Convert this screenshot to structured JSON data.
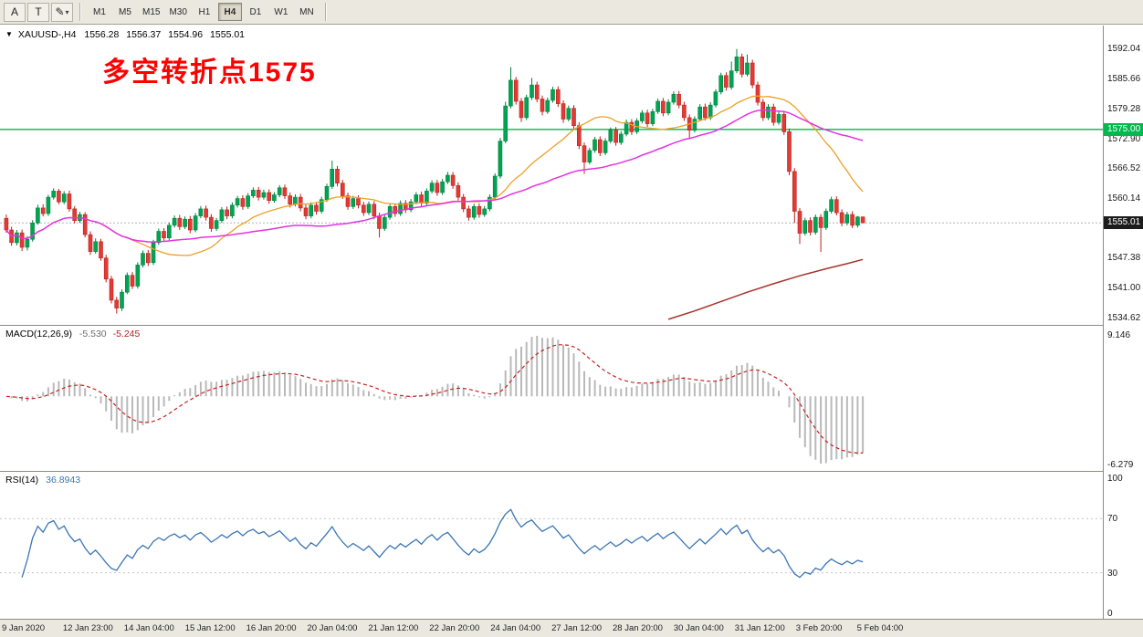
{
  "toolbar": {
    "tools": [
      {
        "label": "A"
      },
      {
        "label": "T"
      },
      {
        "label": "✎",
        "caret": "▾"
      }
    ],
    "timeframes": [
      {
        "label": "M1"
      },
      {
        "label": "M5"
      },
      {
        "label": "M15"
      },
      {
        "label": "M30"
      },
      {
        "label": "H1"
      },
      {
        "label": "H4"
      },
      {
        "label": "D1"
      },
      {
        "label": "W1"
      },
      {
        "label": "MN"
      }
    ],
    "active_timeframe": "H4"
  },
  "chart": {
    "symbol_line": {
      "icon": "▼",
      "symbol": "XAUUSD-,H4",
      "open": "1556.28",
      "high": "1556.37",
      "low": "1554.96",
      "close": "1555.01"
    },
    "annotation": {
      "text": "多空转折点1575",
      "color": "#ff0000"
    },
    "hline": {
      "price": 1575.0,
      "label": "1575.00"
    },
    "current_price": {
      "value": 1555.01,
      "label": "1555.01"
    },
    "axis_labels": [
      1592.04,
      1585.66,
      1579.28,
      1572.9,
      1566.52,
      1560.14,
      1547.38,
      1541.0,
      1534.62
    ]
  },
  "macd_panel": {
    "title": "MACD(12,26,9)",
    "value_main": "-5.530",
    "value_signal": "-5.245",
    "axis_top": "9.146",
    "axis_bottom": "-6.279"
  },
  "rsi_panel": {
    "title": "RSI(14)",
    "value": "36.8943",
    "axis": [
      100,
      70,
      30,
      0
    ],
    "levels": [
      70,
      30
    ]
  },
  "time_axis": {
    "labels": [
      "9 Jan 2020",
      "12 Jan 23:00",
      "14 Jan 04:00",
      "15 Jan 12:00",
      "16 Jan 20:00",
      "20 Jan 04:00",
      "21 Jan 12:00",
      "22 Jan 20:00",
      "24 Jan 04:00",
      "27 Jan 12:00",
      "28 Jan 20:00",
      "30 Jan 04:00",
      "31 Jan 12:00",
      "3 Feb 20:00",
      "5 Feb 04:00"
    ]
  },
  "colors": {
    "bull": "#00a553",
    "bull_stroke": "#00813e",
    "bear": "#e23b35",
    "bear_stroke": "#bc211c",
    "ma_fast": "#eda128",
    "ma_slow": "#e233e2",
    "ma_long": "#a8322c",
    "hline": "#00b94e",
    "price_line": "#b4b4b4",
    "price_tag_bg": "#1c1c1c",
    "macd_hist": "#b9b9b9",
    "macd_signal": "#c62222",
    "rsi": "#3b76b3",
    "rsi_level": "#c6c6c6"
  },
  "chart_data": {
    "type": "candlestick",
    "title": "XAUUSD- H4",
    "ylim": [
      1533.6,
      1596.8
    ],
    "macd_params": [
      12,
      26,
      9
    ],
    "rsi_period": 14,
    "ohlc": [
      [
        1556.0,
        1556.8,
        1552.9,
        1553.5
      ],
      [
        1553.5,
        1554.2,
        1550.1,
        1550.8
      ],
      [
        1550.8,
        1553.5,
        1550.2,
        1552.9
      ],
      [
        1552.9,
        1553.6,
        1549.0,
        1549.8
      ],
      [
        1549.8,
        1552.2,
        1549.1,
        1551.5
      ],
      [
        1551.5,
        1555.6,
        1551.0,
        1555.0
      ],
      [
        1555.0,
        1558.9,
        1554.6,
        1558.2
      ],
      [
        1558.2,
        1559.0,
        1556.4,
        1557.0
      ],
      [
        1557.0,
        1561.0,
        1556.5,
        1560.5
      ],
      [
        1560.5,
        1562.4,
        1560.0,
        1561.8
      ],
      [
        1561.8,
        1562.3,
        1559.0,
        1559.5
      ],
      [
        1559.5,
        1561.8,
        1559.0,
        1561.2
      ],
      [
        1561.2,
        1561.9,
        1557.4,
        1558.0
      ],
      [
        1558.0,
        1558.6,
        1554.9,
        1555.5
      ],
      [
        1555.5,
        1557.4,
        1555.0,
        1556.8
      ],
      [
        1556.8,
        1557.3,
        1551.9,
        1552.5
      ],
      [
        1552.5,
        1553.2,
        1548.2,
        1548.9
      ],
      [
        1548.9,
        1551.7,
        1548.4,
        1551.0
      ],
      [
        1551.0,
        1551.6,
        1546.9,
        1547.5
      ],
      [
        1547.5,
        1548.2,
        1542.3,
        1543.0
      ],
      [
        1543.0,
        1543.7,
        1537.8,
        1538.5
      ],
      [
        1538.5,
        1539.2,
        1535.6,
        1536.8
      ],
      [
        1536.8,
        1540.8,
        1536.2,
        1540.2
      ],
      [
        1540.2,
        1544.4,
        1539.8,
        1543.8
      ],
      [
        1543.8,
        1544.5,
        1540.9,
        1541.5
      ],
      [
        1541.5,
        1546.6,
        1541.0,
        1546.0
      ],
      [
        1546.0,
        1549.1,
        1545.5,
        1548.5
      ],
      [
        1548.5,
        1549.2,
        1545.8,
        1546.5
      ],
      [
        1546.5,
        1551.4,
        1546.0,
        1550.8
      ],
      [
        1550.8,
        1553.8,
        1550.3,
        1553.2
      ],
      [
        1553.2,
        1553.9,
        1551.1,
        1551.8
      ],
      [
        1551.8,
        1555.1,
        1551.3,
        1554.5
      ],
      [
        1554.5,
        1556.6,
        1554.0,
        1556.0
      ],
      [
        1556.0,
        1556.7,
        1553.5,
        1554.2
      ],
      [
        1554.2,
        1556.4,
        1553.7,
        1555.8
      ],
      [
        1555.8,
        1556.5,
        1552.8,
        1553.5
      ],
      [
        1553.5,
        1557.1,
        1553.0,
        1556.5
      ],
      [
        1556.5,
        1558.6,
        1556.0,
        1558.0
      ],
      [
        1558.0,
        1558.7,
        1555.5,
        1556.2
      ],
      [
        1556.2,
        1556.9,
        1553.1,
        1553.8
      ],
      [
        1553.8,
        1556.1,
        1553.3,
        1555.5
      ],
      [
        1555.5,
        1558.4,
        1555.0,
        1557.8
      ],
      [
        1557.8,
        1558.5,
        1555.8,
        1556.5
      ],
      [
        1556.5,
        1559.4,
        1556.0,
        1558.8
      ],
      [
        1558.8,
        1560.8,
        1558.3,
        1560.2
      ],
      [
        1560.2,
        1560.9,
        1557.8,
        1558.5
      ],
      [
        1558.5,
        1561.4,
        1558.0,
        1560.8
      ],
      [
        1560.8,
        1562.6,
        1560.3,
        1562.0
      ],
      [
        1562.0,
        1562.7,
        1559.8,
        1560.5
      ],
      [
        1560.5,
        1562.1,
        1560.0,
        1561.5
      ],
      [
        1561.5,
        1562.2,
        1559.1,
        1559.8
      ],
      [
        1559.8,
        1561.6,
        1559.3,
        1561.0
      ],
      [
        1561.0,
        1563.1,
        1560.5,
        1562.5
      ],
      [
        1562.5,
        1563.2,
        1560.1,
        1560.8
      ],
      [
        1560.8,
        1561.5,
        1558.3,
        1559.0
      ],
      [
        1559.0,
        1561.1,
        1558.5,
        1560.5
      ],
      [
        1560.5,
        1561.2,
        1557.5,
        1558.2
      ],
      [
        1558.2,
        1558.9,
        1555.8,
        1556.5
      ],
      [
        1556.5,
        1559.4,
        1556.0,
        1558.8
      ],
      [
        1558.8,
        1559.5,
        1556.8,
        1557.5
      ],
      [
        1557.5,
        1560.6,
        1557.0,
        1560.0
      ],
      [
        1560.0,
        1563.4,
        1559.5,
        1562.8
      ],
      [
        1562.8,
        1568.3,
        1562.3,
        1566.5
      ],
      [
        1566.5,
        1567.2,
        1562.8,
        1563.5
      ],
      [
        1563.5,
        1564.2,
        1560.1,
        1560.8
      ],
      [
        1560.8,
        1561.5,
        1557.8,
        1558.5
      ],
      [
        1558.5,
        1560.8,
        1558.0,
        1560.2
      ],
      [
        1560.2,
        1560.9,
        1558.1,
        1558.8
      ],
      [
        1558.8,
        1559.5,
        1556.5,
        1557.2
      ],
      [
        1557.2,
        1559.6,
        1556.7,
        1559.0
      ],
      [
        1559.0,
        1559.7,
        1555.8,
        1556.5
      ],
      [
        1556.5,
        1557.2,
        1551.9,
        1553.8
      ],
      [
        1553.8,
        1556.8,
        1553.3,
        1556.2
      ],
      [
        1556.2,
        1559.1,
        1555.7,
        1558.5
      ],
      [
        1558.5,
        1559.2,
        1556.3,
        1557.0
      ],
      [
        1557.0,
        1559.8,
        1556.5,
        1559.2
      ],
      [
        1559.2,
        1559.9,
        1557.1,
        1557.8
      ],
      [
        1557.8,
        1560.1,
        1557.3,
        1559.5
      ],
      [
        1559.5,
        1561.6,
        1559.0,
        1561.0
      ],
      [
        1561.0,
        1561.7,
        1558.5,
        1559.2
      ],
      [
        1559.2,
        1562.4,
        1558.7,
        1561.8
      ],
      [
        1561.8,
        1564.1,
        1561.3,
        1563.5
      ],
      [
        1563.5,
        1564.2,
        1560.8,
        1561.5
      ],
      [
        1561.5,
        1564.4,
        1561.0,
        1563.8
      ],
      [
        1563.8,
        1565.9,
        1563.3,
        1565.2
      ],
      [
        1565.2,
        1565.9,
        1562.3,
        1563.0
      ],
      [
        1563.0,
        1563.7,
        1559.8,
        1560.5
      ],
      [
        1560.5,
        1561.2,
        1557.3,
        1558.0
      ],
      [
        1558.0,
        1558.7,
        1555.5,
        1556.2
      ],
      [
        1556.2,
        1559.1,
        1555.7,
        1558.5
      ],
      [
        1558.5,
        1559.2,
        1556.1,
        1556.8
      ],
      [
        1556.8,
        1558.6,
        1556.3,
        1558.0
      ],
      [
        1558.0,
        1561.1,
        1557.5,
        1560.5
      ],
      [
        1560.5,
        1565.6,
        1560.0,
        1565.0
      ],
      [
        1565.0,
        1573.2,
        1564.5,
        1572.5
      ],
      [
        1572.5,
        1580.9,
        1572.0,
        1580.0
      ],
      [
        1580.0,
        1588.3,
        1579.5,
        1585.5
      ],
      [
        1585.5,
        1586.2,
        1580.3,
        1581.0
      ],
      [
        1581.0,
        1581.7,
        1576.6,
        1577.5
      ],
      [
        1577.5,
        1582.4,
        1577.0,
        1581.8
      ],
      [
        1581.8,
        1586.0,
        1581.3,
        1584.5
      ],
      [
        1584.5,
        1585.2,
        1580.8,
        1581.5
      ],
      [
        1581.5,
        1582.2,
        1578.0,
        1578.8
      ],
      [
        1578.8,
        1581.8,
        1578.3,
        1581.2
      ],
      [
        1581.2,
        1584.1,
        1580.7,
        1583.5
      ],
      [
        1583.5,
        1584.2,
        1579.8,
        1580.5
      ],
      [
        1580.5,
        1581.2,
        1576.4,
        1577.2
      ],
      [
        1577.2,
        1580.1,
        1576.7,
        1579.5
      ],
      [
        1579.5,
        1580.2,
        1575.1,
        1575.8
      ],
      [
        1575.8,
        1576.5,
        1570.8,
        1571.5
      ],
      [
        1571.5,
        1572.2,
        1565.5,
        1568.0
      ],
      [
        1568.0,
        1571.1,
        1567.5,
        1570.5
      ],
      [
        1570.5,
        1573.4,
        1570.0,
        1572.8
      ],
      [
        1572.8,
        1573.5,
        1569.3,
        1570.0
      ],
      [
        1570.0,
        1573.1,
        1569.5,
        1572.5
      ],
      [
        1572.5,
        1575.4,
        1572.0,
        1574.8
      ],
      [
        1574.8,
        1575.5,
        1571.5,
        1572.2
      ],
      [
        1572.2,
        1574.6,
        1571.7,
        1574.0
      ],
      [
        1574.0,
        1577.1,
        1573.5,
        1576.5
      ],
      [
        1576.5,
        1577.2,
        1573.8,
        1574.5
      ],
      [
        1574.5,
        1577.4,
        1574.0,
        1576.8
      ],
      [
        1576.8,
        1579.1,
        1576.3,
        1578.5
      ],
      [
        1578.5,
        1579.2,
        1575.5,
        1576.2
      ],
      [
        1576.2,
        1579.4,
        1575.7,
        1578.8
      ],
      [
        1578.8,
        1581.6,
        1578.3,
        1581.0
      ],
      [
        1581.0,
        1581.7,
        1577.8,
        1578.5
      ],
      [
        1578.5,
        1581.4,
        1578.0,
        1580.8
      ],
      [
        1580.8,
        1583.1,
        1580.3,
        1582.5
      ],
      [
        1582.5,
        1583.2,
        1579.5,
        1580.2
      ],
      [
        1580.2,
        1580.9,
        1576.8,
        1577.5
      ],
      [
        1577.5,
        1578.2,
        1572.9,
        1574.8
      ],
      [
        1574.8,
        1577.8,
        1574.3,
        1577.2
      ],
      [
        1577.2,
        1580.4,
        1576.7,
        1579.8
      ],
      [
        1579.8,
        1580.5,
        1576.9,
        1577.5
      ],
      [
        1577.5,
        1580.8,
        1577.0,
        1580.2
      ],
      [
        1580.2,
        1583.6,
        1579.7,
        1583.0
      ],
      [
        1583.0,
        1587.1,
        1582.5,
        1586.5
      ],
      [
        1586.5,
        1587.2,
        1583.3,
        1584.0
      ],
      [
        1584.0,
        1589.5,
        1583.5,
        1587.5
      ],
      [
        1587.5,
        1592.2,
        1587.0,
        1590.5
      ],
      [
        1590.5,
        1591.2,
        1586.1,
        1586.8
      ],
      [
        1586.8,
        1591.0,
        1586.3,
        1589.2
      ],
      [
        1589.2,
        1589.9,
        1583.8,
        1584.5
      ],
      [
        1584.5,
        1585.2,
        1580.1,
        1580.8
      ],
      [
        1580.8,
        1581.5,
        1576.8,
        1577.5
      ],
      [
        1577.5,
        1580.4,
        1577.0,
        1579.8
      ],
      [
        1579.8,
        1580.5,
        1575.8,
        1576.5
      ],
      [
        1576.5,
        1578.8,
        1576.0,
        1578.2
      ],
      [
        1578.2,
        1578.9,
        1573.8,
        1574.5
      ],
      [
        1574.5,
        1575.2,
        1565.2,
        1566.0
      ],
      [
        1566.0,
        1566.7,
        1555.0,
        1557.5
      ],
      [
        1557.5,
        1558.2,
        1550.5,
        1552.8
      ],
      [
        1552.8,
        1556.1,
        1552.3,
        1555.5
      ],
      [
        1555.5,
        1556.2,
        1552.3,
        1553.0
      ],
      [
        1553.0,
        1556.8,
        1552.5,
        1556.2
      ],
      [
        1556.2,
        1556.9,
        1548.8,
        1554.0
      ],
      [
        1554.0,
        1558.1,
        1553.5,
        1557.5
      ],
      [
        1557.5,
        1560.6,
        1557.0,
        1560.0
      ],
      [
        1560.0,
        1560.7,
        1556.6,
        1557.2
      ],
      [
        1557.2,
        1557.9,
        1554.3,
        1555.0
      ],
      [
        1555.0,
        1557.4,
        1554.5,
        1556.8
      ],
      [
        1556.8,
        1557.5,
        1553.9,
        1554.5
      ],
      [
        1554.5,
        1556.5,
        1554.0,
        1556.28
      ],
      [
        1556.28,
        1556.37,
        1554.96,
        1555.01
      ]
    ],
    "overlays": {
      "sma_fast_period": 20,
      "sma_slow_period": 50,
      "sma_long_points": [
        [
          126,
          1534.4
        ],
        [
          131,
          1536.2
        ],
        [
          136,
          1538.2
        ],
        [
          141,
          1540.2
        ],
        [
          146,
          1542.0
        ],
        [
          151,
          1543.7
        ],
        [
          156,
          1545.2
        ],
        [
          160,
          1546.3
        ],
        [
          163,
          1547.2
        ]
      ],
      "hline_price": 1575.0
    }
  }
}
